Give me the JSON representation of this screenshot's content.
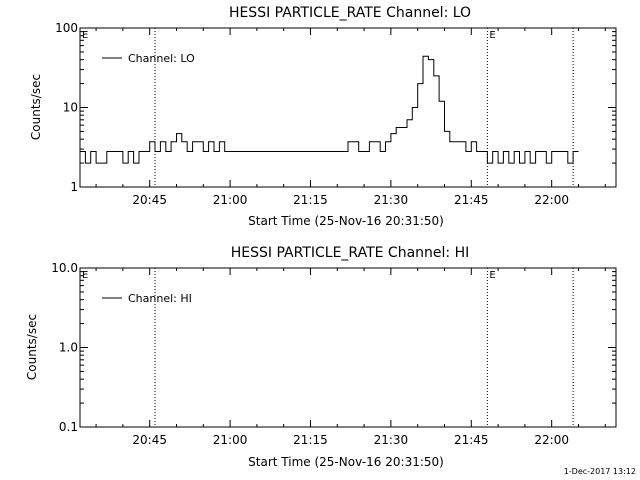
{
  "timestamp": "1-Dec-2017 13:12",
  "chart_data": [
    {
      "type": "line",
      "title": "HESSI PARTICLE_RATE Channel: LO",
      "xlabel": "Start Time (25-Nov-16 20:31:50)",
      "ylabel": "Counts/sec",
      "yscale": "log",
      "ylim": [
        1,
        100
      ],
      "xlim": [
        "20:32",
        "22:12"
      ],
      "y_ticks": [
        {
          "v": 1,
          "label": "1"
        },
        {
          "v": 10,
          "label": "10"
        },
        {
          "v": 100,
          "label": "100"
        }
      ],
      "x_ticks": [
        {
          "t": "20:45",
          "label": "20:45"
        },
        {
          "t": "21:00",
          "label": "21:00"
        },
        {
          "t": "21:15",
          "label": "21:15"
        },
        {
          "t": "21:30",
          "label": "21:30"
        },
        {
          "t": "21:45",
          "label": "21:45"
        },
        {
          "t": "22:00",
          "label": "22:00"
        }
      ],
      "markers": [
        {
          "t": "20:32",
          "label": "E"
        },
        {
          "t": "20:46",
          "label": ""
        },
        {
          "t": "21:48",
          "label": "E"
        },
        {
          "t": "22:04",
          "label": ""
        }
      ],
      "legend": {
        "label": "Channel: LO",
        "position": "top-left"
      },
      "series": [
        {
          "name": "Channel: LO",
          "x": [
            "20:32",
            "20:33",
            "20:34",
            "20:35",
            "20:36",
            "20:37",
            "20:38",
            "20:39",
            "20:40",
            "20:41",
            "20:42",
            "20:43",
            "20:44",
            "20:45",
            "20:46",
            "20:47",
            "20:48",
            "20:49",
            "20:50",
            "20:51",
            "20:52",
            "20:53",
            "20:54",
            "20:55",
            "20:56",
            "20:57",
            "20:58",
            "20:59",
            "21:00",
            "21:02",
            "21:04",
            "21:06",
            "21:08",
            "21:10",
            "21:12",
            "21:14",
            "21:16",
            "21:18",
            "21:20",
            "21:22",
            "21:24",
            "21:26",
            "21:28",
            "21:29",
            "21:30",
            "21:31",
            "21:32",
            "21:33",
            "21:34",
            "21:35",
            "21:36",
            "21:37",
            "21:38",
            "21:39",
            "21:40",
            "21:41",
            "21:42",
            "21:43",
            "21:44",
            "21:45",
            "21:46",
            "21:47",
            "21:48",
            "21:49",
            "21:50",
            "21:51",
            "21:52",
            "21:53",
            "21:54",
            "21:55",
            "21:56",
            "21:57",
            "21:58",
            "21:59",
            "22:00",
            "22:01",
            "22:02",
            "22:03",
            "22:04"
          ],
          "values": [
            2.8,
            2,
            2.8,
            2,
            2,
            2.8,
            2.8,
            2.8,
            2,
            2.8,
            2,
            2.8,
            2.8,
            3.7,
            2.8,
            3.7,
            2.8,
            3.7,
            4.7,
            3.7,
            2.8,
            3.7,
            3.7,
            2.8,
            3.7,
            2.8,
            3.7,
            2.8,
            2.8,
            2.8,
            2.8,
            2.8,
            2.8,
            2.8,
            2.8,
            2.8,
            2.8,
            2.8,
            2.8,
            3.7,
            2.8,
            3.7,
            2.8,
            3.7,
            4.7,
            5.6,
            5.6,
            7,
            10,
            20,
            44,
            40,
            25,
            12,
            5,
            3.7,
            3.7,
            3.7,
            2.8,
            3.7,
            2.8,
            2.8,
            2,
            2.8,
            2,
            2.8,
            2,
            2.8,
            2,
            2.8,
            2,
            2.8,
            2.8,
            2,
            2.8,
            2.8,
            2.8,
            2,
            2.8
          ]
        }
      ]
    },
    {
      "type": "line",
      "title": "HESSI PARTICLE_RATE Channel: HI",
      "xlabel": "Start Time (25-Nov-16 20:31:50)",
      "ylabel": "Counts/sec",
      "yscale": "log",
      "ylim": [
        0.1,
        10
      ],
      "xlim": [
        "20:32",
        "22:12"
      ],
      "y_ticks": [
        {
          "v": 0.1,
          "label": "0.1"
        },
        {
          "v": 1,
          "label": "1.0"
        },
        {
          "v": 10,
          "label": "10.0"
        }
      ],
      "x_ticks": [
        {
          "t": "20:45",
          "label": "20:45"
        },
        {
          "t": "21:00",
          "label": "21:00"
        },
        {
          "t": "21:15",
          "label": "21:15"
        },
        {
          "t": "21:30",
          "label": "21:30"
        },
        {
          "t": "21:45",
          "label": "21:45"
        },
        {
          "t": "22:00",
          "label": "22:00"
        }
      ],
      "markers": [
        {
          "t": "20:32",
          "label": "E"
        },
        {
          "t": "20:46",
          "label": ""
        },
        {
          "t": "21:48",
          "label": "E"
        },
        {
          "t": "22:04",
          "label": ""
        }
      ],
      "legend": {
        "label": "Channel: HI",
        "position": "top-left"
      },
      "series": [
        {
          "name": "Channel: HI",
          "x": [],
          "values": []
        }
      ]
    }
  ]
}
